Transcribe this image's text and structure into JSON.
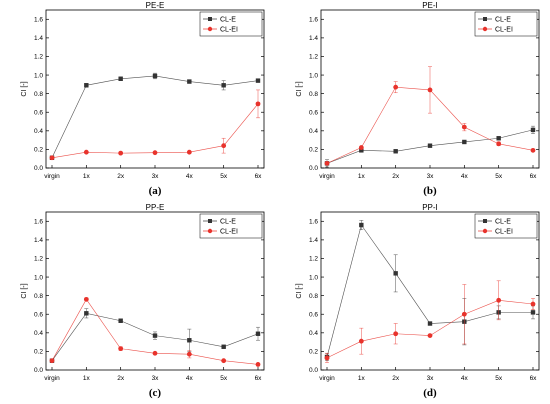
{
  "colors": {
    "CL-E": "#333333",
    "CL-EI": "#e8332c"
  },
  "chart_data": [
    {
      "type": "line",
      "title": "PE-E",
      "caption": "(a)",
      "ylabel": "CI [-]",
      "categories": [
        "virgin",
        "1x",
        "2x",
        "3x",
        "4x",
        "5x",
        "6x"
      ],
      "ylim": [
        0,
        1.7
      ],
      "yticks": [
        0.0,
        0.2,
        0.4,
        0.6,
        0.8,
        1.0,
        1.2,
        1.4,
        1.6
      ],
      "legend_position": "top-right",
      "grid": false,
      "series": [
        {
          "name": "CL-E",
          "values": [
            0.11,
            0.89,
            0.96,
            0.99,
            0.93,
            0.89,
            0.94
          ],
          "errors": [
            0,
            0.02,
            0.02,
            0.03,
            0.01,
            0.05,
            0.01
          ]
        },
        {
          "name": "CL-EI",
          "values": [
            0.11,
            0.17,
            0.16,
            0.165,
            0.17,
            0.24,
            0.69
          ],
          "errors": [
            0,
            0,
            0,
            0,
            0,
            0.08,
            0.15
          ]
        }
      ]
    },
    {
      "type": "line",
      "title": "PE-I",
      "caption": "(b)",
      "ylabel": "CI [-]",
      "categories": [
        "virgin",
        "1x",
        "2x",
        "3x",
        "4x",
        "5x",
        "6x"
      ],
      "ylim": [
        0,
        1.7
      ],
      "yticks": [
        0.0,
        0.2,
        0.4,
        0.6,
        0.8,
        1.0,
        1.2,
        1.4,
        1.6
      ],
      "legend_position": "top-right",
      "grid": false,
      "series": [
        {
          "name": "CL-E",
          "values": [
            0.05,
            0.19,
            0.18,
            0.24,
            0.28,
            0.32,
            0.41
          ],
          "errors": [
            0.04,
            0.02,
            0.01,
            0.01,
            0.01,
            0.01,
            0.04
          ]
        },
        {
          "name": "CL-EI",
          "values": [
            0.05,
            0.22,
            0.87,
            0.84,
            0.44,
            0.26,
            0.19
          ],
          "errors": [
            0,
            0,
            0.06,
            0.25,
            0.04,
            0.02,
            0.01
          ]
        }
      ]
    },
    {
      "type": "line",
      "title": "PP-E",
      "caption": "(c)",
      "ylabel": "CI [-]",
      "categories": [
        "virgin",
        "1x",
        "2x",
        "3x",
        "4x",
        "5x",
        "6x"
      ],
      "ylim": [
        0,
        1.7
      ],
      "yticks": [
        0.0,
        0.2,
        0.4,
        0.6,
        0.8,
        1.0,
        1.2,
        1.4,
        1.6
      ],
      "legend_position": "top-right",
      "grid": false,
      "series": [
        {
          "name": "CL-E",
          "values": [
            0.1,
            0.61,
            0.53,
            0.37,
            0.32,
            0.25,
            0.39
          ],
          "errors": [
            0,
            0.05,
            0.02,
            0.04,
            0.12,
            0.01,
            0.07
          ]
        },
        {
          "name": "CL-EI",
          "values": [
            0.1,
            0.76,
            0.23,
            0.18,
            0.17,
            0.1,
            0.06
          ],
          "errors": [
            0,
            0,
            0.02,
            0.01,
            0.04,
            0.01,
            0.01
          ]
        }
      ]
    },
    {
      "type": "line",
      "title": "PP-I",
      "caption": "(d)",
      "ylabel": "CI [-]",
      "categories": [
        "virgin",
        "1x",
        "2x",
        "3x",
        "4x",
        "5x",
        "6x"
      ],
      "ylim": [
        0,
        1.7
      ],
      "yticks": [
        0.0,
        0.2,
        0.4,
        0.6,
        0.8,
        1.0,
        1.2,
        1.4,
        1.6
      ],
      "legend_position": "top-right",
      "grid": false,
      "series": [
        {
          "name": "CL-E",
          "values": [
            0.14,
            1.56,
            1.04,
            0.5,
            0.52,
            0.62,
            0.62
          ],
          "errors": [
            0.04,
            0.05,
            0.2,
            0.01,
            0.25,
            0.07,
            0.07
          ]
        },
        {
          "name": "CL-EI",
          "values": [
            0.13,
            0.31,
            0.39,
            0.37,
            0.6,
            0.75,
            0.71
          ],
          "errors": [
            0.05,
            0.14,
            0.11,
            0.01,
            0.32,
            0.21,
            0.06
          ]
        }
      ]
    }
  ]
}
